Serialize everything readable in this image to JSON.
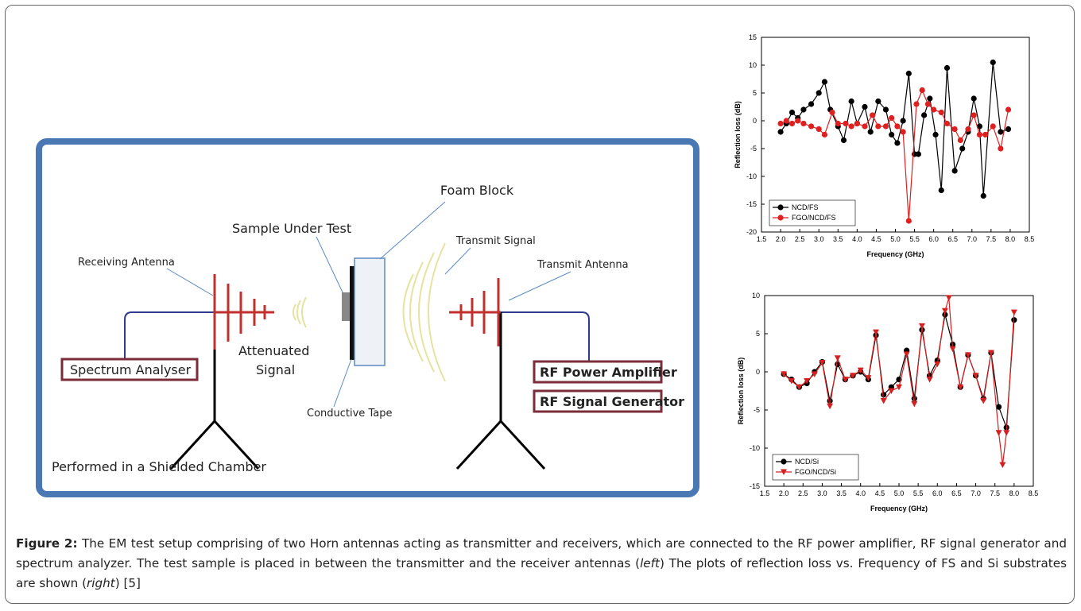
{
  "diagram": {
    "foam_block": "Foam Block",
    "sample_under_test": "Sample Under Test",
    "transmit_signal": "Transmit Signal",
    "receiving_antenna": "Receiving Antenna",
    "transmit_antenna": "Transmit Antenna",
    "attenuated_signal": [
      "Attenuated",
      "Signal"
    ],
    "spectrum_analyser": "Spectrum Analyser",
    "rf_power_amplifier": "RF Power Amplifier",
    "rf_signal_generator": "RF Signal Generator",
    "conductive_tape": "Conductive Tape",
    "chamber_note": "Performed in a Shielded Chamber"
  },
  "chart_data": [
    {
      "type": "line",
      "x_label": "Frequency (GHz)",
      "y_label": "Reflection loss (dB)",
      "xlim": [
        1.5,
        8.5
      ],
      "ylim": [
        -20,
        15
      ],
      "xticks": [
        1.5,
        {
          "value": 2,
          "label": "2.0"
        },
        2.5,
        {
          "value": 3,
          "label": "3.0"
        },
        3.5,
        {
          "value": 4,
          "label": "4.0"
        },
        4.5,
        {
          "value": 5,
          "label": "5.0"
        },
        5.5,
        {
          "value": 6,
          "label": "6.0"
        },
        6.5,
        {
          "value": 7,
          "label": "7.0"
        },
        7.5,
        {
          "value": 8,
          "label": "8.0"
        },
        8.5
      ],
      "yticks": [
        -20,
        -15,
        -10,
        -5,
        0,
        5,
        10,
        15
      ],
      "legend": "lower left",
      "series": [
        {
          "name": "NCD/FS",
          "color": "#000000",
          "marker": "circle",
          "x": [
            2.0,
            2.15,
            2.3,
            2.45,
            2.6,
            2.8,
            3.0,
            3.15,
            3.3,
            3.5,
            3.65,
            3.85,
            4.0,
            4.2,
            4.35,
            4.55,
            4.75,
            4.9,
            5.05,
            5.2,
            5.35,
            5.5,
            5.6,
            5.75,
            5.9,
            6.05,
            6.2,
            6.35,
            6.55,
            6.75,
            6.9,
            7.05,
            7.2,
            7.3,
            7.55,
            7.75,
            7.95
          ],
          "values": [
            -2,
            -0.5,
            1.5,
            0.5,
            2,
            3,
            5,
            7,
            2,
            -1,
            -3.5,
            3.5,
            -0.5,
            2.5,
            -2,
            3.5,
            2,
            -2.5,
            -4,
            0,
            8.5,
            -6,
            -6,
            1,
            4,
            -2.5,
            -12.5,
            9.5,
            -9,
            -5,
            -2,
            4,
            -1,
            -13.5,
            10.5,
            -2,
            -1.5
          ]
        },
        {
          "name": "FGO/NCD/FS",
          "color": "#e02020",
          "marker": "circle",
          "x": [
            2.0,
            2.15,
            2.3,
            2.45,
            2.6,
            2.8,
            3.0,
            3.15,
            3.35,
            3.5,
            3.7,
            3.85,
            4.0,
            4.2,
            4.4,
            4.55,
            4.75,
            4.9,
            5.05,
            5.2,
            5.35,
            5.55,
            5.7,
            5.85,
            6.0,
            6.2,
            6.35,
            6.55,
            6.7,
            6.9,
            7.05,
            7.2,
            7.35,
            7.55,
            7.75,
            7.95
          ],
          "values": [
            -0.5,
            0,
            -0.5,
            0,
            -0.5,
            -1,
            -1.5,
            -2.5,
            1.5,
            -0.5,
            -0.5,
            -1,
            -0.5,
            -1,
            1,
            -1,
            -1,
            0.5,
            -1,
            -2,
            -18,
            3,
            5.5,
            3,
            2,
            1.5,
            -0.5,
            -1.5,
            -3.5,
            -1.5,
            1,
            -2.5,
            -2.5,
            -1,
            -5,
            2
          ]
        }
      ]
    },
    {
      "type": "line",
      "x_label": "Frequency (GHz)",
      "y_label": "Reflection loss (dB)",
      "xlim": [
        1.5,
        8.5
      ],
      "ylim": [
        -15,
        10
      ],
      "xticks": [
        1.5,
        {
          "value": 2,
          "label": "2.0"
        },
        2.5,
        {
          "value": 3,
          "label": "3.0"
        },
        3.5,
        {
          "value": 4,
          "label": "4.0"
        },
        4.5,
        {
          "value": 5,
          "label": "5.0"
        },
        5.5,
        {
          "value": 6,
          "label": "6.0"
        },
        6.5,
        {
          "value": 7,
          "label": "7.0"
        },
        7.5,
        {
          "value": 8,
          "label": "8.0"
        },
        8.5
      ],
      "yticks": [
        -15,
        -10,
        -5,
        0,
        5,
        10
      ],
      "legend": "lower left",
      "series": [
        {
          "name": "NCD/Si",
          "color": "#000000",
          "marker": "circle",
          "x": [
            2.0,
            2.2,
            2.4,
            2.6,
            2.8,
            3.0,
            3.2,
            3.4,
            3.6,
            3.8,
            4.0,
            4.2,
            4.4,
            4.6,
            4.8,
            5.0,
            5.2,
            5.4,
            5.6,
            5.8,
            6.0,
            6.2,
            6.4,
            6.6,
            6.8,
            7.0,
            7.2,
            7.4,
            7.6,
            7.8,
            8.0
          ],
          "values": [
            -0.3,
            -1,
            -2,
            -1.5,
            0,
            1.3,
            -3.8,
            1,
            -1,
            -0.5,
            0,
            -1,
            4.8,
            -3,
            -2,
            -1,
            2.8,
            -3.5,
            5.5,
            -0.5,
            1.5,
            7.5,
            3.6,
            -2,
            2.2,
            -0.5,
            -3.5,
            2.5,
            -4.6,
            -7.3,
            6.8
          ]
        },
        {
          "name": "FGO/NCD/Si",
          "color": "#d42020",
          "marker": "triangle-down",
          "x": [
            2.0,
            2.2,
            2.4,
            2.6,
            2.8,
            3.0,
            3.2,
            3.4,
            3.6,
            3.8,
            4.0,
            4.2,
            4.4,
            4.6,
            4.8,
            5.0,
            5.2,
            5.4,
            5.6,
            5.8,
            6.0,
            6.2,
            6.3,
            6.4,
            6.6,
            6.8,
            7.0,
            7.2,
            7.4,
            7.6,
            7.7,
            7.8,
            8.0
          ],
          "values": [
            -0.3,
            -1.2,
            -2,
            -1.2,
            -0.3,
            1.2,
            -4.5,
            1.8,
            -1,
            -0.5,
            0.2,
            -0.8,
            5.2,
            -3.8,
            -2.5,
            -2,
            2.3,
            -4.2,
            6,
            -1,
            1,
            8,
            9.7,
            3,
            -2,
            2.2,
            -0.5,
            -3.8,
            2.5,
            -8,
            -12.2,
            -8,
            7.8
          ]
        }
      ]
    }
  ],
  "caption": {
    "label": "Figure 2:",
    "parts": [
      " The EM test setup comprising of two Horn antennas acting as transmitter and receivers, which are connected to the RF power amplifier, RF signal generator and spectrum analyzer. The test sample is placed in between the transmitter and the receiver antennas (",
      "left",
      ") The plots of reflection loss vs. Frequency of FS and Si substrates are shown (",
      "right",
      ") [5]"
    ]
  }
}
